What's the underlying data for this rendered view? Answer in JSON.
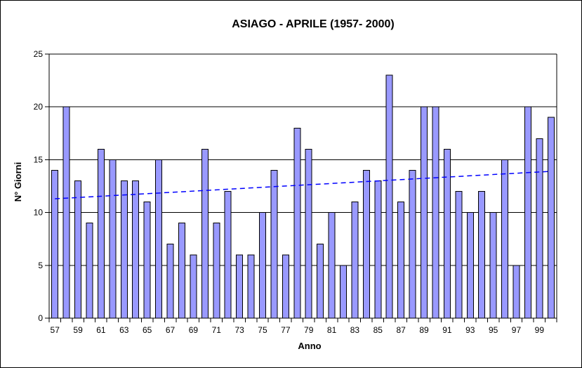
{
  "chart_data": {
    "type": "bar",
    "title": "ASIAGO - APRILE (1957- 2000)",
    "xlabel": "Anno",
    "ylabel": "N° Giorni",
    "ylim": [
      0,
      25
    ],
    "yticks": [
      0,
      5,
      10,
      15,
      20,
      25
    ],
    "grid": true,
    "legend": false,
    "x_label_every": 2,
    "categories": [
      "57",
      "58",
      "59",
      "60",
      "61",
      "62",
      "63",
      "64",
      "65",
      "66",
      "67",
      "68",
      "69",
      "70",
      "71",
      "72",
      "73",
      "74",
      "75",
      "76",
      "77",
      "78",
      "79",
      "80",
      "81",
      "82",
      "83",
      "84",
      "85",
      "86",
      "87",
      "88",
      "89",
      "90",
      "91",
      "92",
      "93",
      "94",
      "95",
      "96",
      "97",
      "98",
      "99",
      "00"
    ],
    "values": [
      14,
      20,
      13,
      9,
      16,
      15,
      13,
      13,
      11,
      15,
      7,
      9,
      6,
      16,
      9,
      12,
      6,
      6,
      10,
      14,
      6,
      18,
      16,
      7,
      10,
      5,
      11,
      14,
      13,
      23,
      11,
      14,
      20,
      20,
      16,
      12,
      10,
      12,
      10,
      15,
      5,
      20,
      17,
      19
    ],
    "trendline": {
      "type": "linear",
      "style": "dashed",
      "y_start": 11.3,
      "y_end": 13.9
    },
    "colors": {
      "bar_fill": "#9999FF",
      "bar_border": "#000000",
      "trendline": "#0000FF",
      "grid": "#000000",
      "axis": "#000000",
      "text": "#000000",
      "background": "#FFFFFF",
      "frame_border": "#000000"
    }
  }
}
